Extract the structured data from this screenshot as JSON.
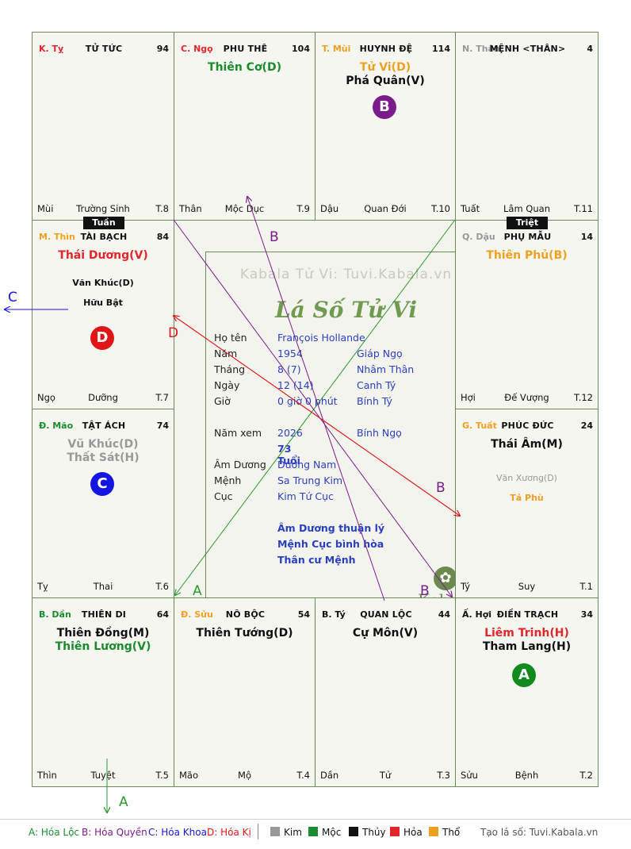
{
  "colors": {
    "kim": "#999999",
    "moc": "#1a8c2e",
    "thuy": "#111111",
    "hoa": "#e3262a",
    "tho": "#f0a020",
    "badge_a": "#138a1e",
    "badge_b": "#7a1c8c",
    "badge_c": "#1515e0",
    "badge_d": "#e01515"
  },
  "palaces": [
    {
      "id": "ty",
      "can": "K. Tỵ",
      "can_color": "#e3262a",
      "name": "TỬ TỨC",
      "num": "94",
      "major": [],
      "minor": [],
      "branch": "Mùi",
      "state": "Trường Sinh",
      "t": "T.8"
    },
    {
      "id": "ngo",
      "can": "C. Ngọ",
      "can_color": "#e3262a",
      "name": "PHU THÊ",
      "num": "104",
      "major": [
        {
          "text": "Thiên Cơ(D)",
          "color": "#1a8c2e"
        }
      ],
      "minor": [],
      "branch": "Thân",
      "state": "Mộc Dục",
      "t": "T.9"
    },
    {
      "id": "mui",
      "can": "T. Mùi",
      "can_color": "#f0a020",
      "name": "HUYNH ĐỆ",
      "num": "114",
      "major": [
        {
          "text": "Tử Vi(D)",
          "color": "#f0a020"
        },
        {
          "text": "Phá Quân(V)",
          "color": "#111111"
        }
      ],
      "minor": [],
      "branch": "Dậu",
      "state": "Quan Đới",
      "t": "T.10"
    },
    {
      "id": "than",
      "can": "N. Thân",
      "can_color": "#999999",
      "name": "MỆNH <THÂN>",
      "num": "4",
      "major": [],
      "minor": [],
      "branch": "Tuất",
      "state": "Lâm Quan",
      "t": "T.11"
    },
    {
      "id": "thin",
      "can": "M. Thìn",
      "can_color": "#f0a020",
      "name": "TÀI BẠCH",
      "num": "84",
      "major": [
        {
          "text": "Thái Dương(V)",
          "color": "#e3262a"
        }
      ],
      "minor": [
        {
          "text": "Văn Khúc(D)",
          "color": "#111111"
        },
        {
          "text": "Hữu Bật",
          "color": "#111111"
        }
      ],
      "branch": "Ngọ",
      "state": "Dưỡng",
      "t": "T.7"
    },
    {
      "id": "dau",
      "can": "Q. Dậu",
      "can_color": "#999999",
      "name": "PHỤ MẪU",
      "num": "14",
      "major": [
        {
          "text": "Thiên Phủ(B)",
          "color": "#f0a020"
        }
      ],
      "minor": [],
      "branch": "Hợi",
      "state": "Đế Vượng",
      "t": "T.12"
    },
    {
      "id": "mao",
      "can": "Đ. Mão",
      "can_color": "#1a8c2e",
      "name": "TẬT ÁCH",
      "num": "74",
      "major": [
        {
          "text": "Vũ Khúc(D)",
          "color": "#999999"
        },
        {
          "text": "Thất Sát(H)",
          "color": "#999999"
        }
      ],
      "minor": [],
      "branch": "Tỵ",
      "state": "Thai",
      "t": "T.6"
    },
    {
      "id": "tuat",
      "can": "G. Tuất",
      "can_color": "#f0a020",
      "name": "PHÚC ĐỨC",
      "num": "24",
      "major": [
        {
          "text": "Thái Âm(M)",
          "color": "#111111"
        }
      ],
      "minor": [
        {
          "text": "Văn Xương(D)",
          "color": "#999999"
        },
        {
          "text": "Tả Phù",
          "color": "#f0a020"
        }
      ],
      "branch": "Tý",
      "state": "Suy",
      "t": "T.1"
    },
    {
      "id": "dan",
      "can": "B. Dần",
      "can_color": "#1a8c2e",
      "name": "THIÊN DI",
      "num": "64",
      "major": [
        {
          "text": "Thiên Đồng(M)",
          "color": "#111111"
        },
        {
          "text": "Thiên Lương(V)",
          "color": "#1a8c2e"
        }
      ],
      "minor": [],
      "branch": "Thìn",
      "state": "Tuyệt",
      "t": "T.5"
    },
    {
      "id": "suu",
      "can": "Đ. Sửu",
      "can_color": "#f0a020",
      "name": "NÔ BỘC",
      "num": "54",
      "major": [
        {
          "text": "Thiên Tướng(D)",
          "color": "#111111"
        }
      ],
      "minor": [],
      "branch": "Mão",
      "state": "Mộ",
      "t": "T.4"
    },
    {
      "id": "ti",
      "can": "B. Tý",
      "can_color": "#111111",
      "name": "QUAN LỘC",
      "num": "44",
      "major": [
        {
          "text": "Cự Môn(V)",
          "color": "#111111"
        }
      ],
      "minor": [],
      "branch": "Dần",
      "state": "Tử",
      "t": "T.3"
    },
    {
      "id": "hoi",
      "can": "Ấ. Hợi",
      "can_color": "#111111",
      "name": "ĐIỀN TRẠCH",
      "num": "34",
      "major": [
        {
          "text": "Liêm Trinh(H)",
          "color": "#e3262a"
        },
        {
          "text": "Tham Lang(H)",
          "color": "#111111"
        }
      ],
      "minor": [],
      "branch": "Sửu",
      "state": "Bệnh",
      "t": "T.2"
    }
  ],
  "tags": {
    "tuan": "Tuần",
    "triet": "Triệt"
  },
  "badges": {
    "a": "A",
    "b": "B",
    "c": "C",
    "d": "D"
  },
  "center": {
    "watermark": "Kabala Tử Vi: Tuvi.Kabala.vn",
    "title": "Lá Số Tử Vi",
    "logo": "Kabala",
    "rows": [
      {
        "label": "Họ tên",
        "v1": "François Hollande",
        "v2": ""
      },
      {
        "label": "Năm",
        "v1": "1954",
        "v2": "Giáp Ngọ"
      },
      {
        "label": "Tháng",
        "v1": "8  (7)",
        "v2": "Nhâm Thân"
      },
      {
        "label": "Ngày",
        "v1": "12  (14)",
        "v2": "Canh Tý"
      },
      {
        "label": "Giờ",
        "v1": "0 giờ 0 phút",
        "v2": "Bính Tý"
      }
    ],
    "nam_xem": {
      "label": "Năm xem",
      "v1": "2026",
      "v2": "Bính Ngọ"
    },
    "age": "73 Tuổi",
    "rows2": [
      {
        "label": "Âm Dương",
        "v1": "Dương Nam"
      },
      {
        "label": "Mệnh",
        "v1": "Sa Trung Kim"
      },
      {
        "label": "Cục",
        "v1": "Kim Tứ Cục"
      }
    ],
    "notes": [
      "Âm Dương thuận lý",
      "Mệnh Cục bình hòa",
      "Thân cư Mệnh"
    ]
  },
  "arrow_labels": {
    "a1": "A",
    "a2": "A",
    "b1": "B",
    "b2": "B",
    "b3": "B",
    "c": "C",
    "d": "D"
  },
  "legend": {
    "hoa_loc": "A: Hóa Lộc",
    "hoa_quyen": "B: Hóa Quyền",
    "hoa_khoa": "C: Hóa Khoa",
    "hoa_ki": "D: Hóa Kị",
    "kim": "Kim",
    "moc": "Mộc",
    "thuy": "Thủy",
    "hoa": "Hỏa",
    "tho": "Thổ",
    "site": "Tạo lá số: Tuvi.Kabala.vn"
  }
}
